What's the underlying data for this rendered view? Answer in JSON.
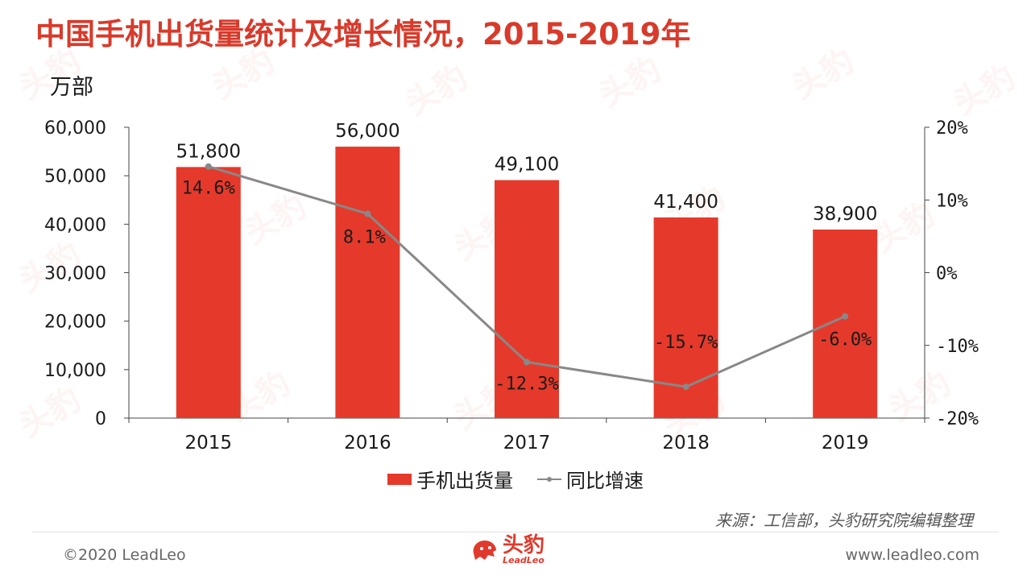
{
  "title": "中国手机出货量统计及增长情况，2015-2019年",
  "unit_label": "万部",
  "source": "来源：工信部，头豹研究院编辑整理",
  "footer": {
    "copyright": "©2020 LeadLeo",
    "website": "www.leadleo.com",
    "logo_cn": "头豹",
    "logo_en": "LeadLeo"
  },
  "watermark_text": "头豹",
  "colors": {
    "bar": "#e53a2b",
    "line": "#888888",
    "title": "#d83a2b"
  },
  "legend": {
    "bar_label": "手机出货量",
    "line_label": "同比增速"
  },
  "chart_data": {
    "type": "bar",
    "categories": [
      "2015",
      "2016",
      "2017",
      "2018",
      "2019"
    ],
    "series": [
      {
        "name": "手机出货量",
        "type": "bar",
        "axis": "left",
        "values": [
          51800,
          56000,
          49100,
          41400,
          38900
        ],
        "labels": [
          "51,800",
          "56,000",
          "49,100",
          "41,400",
          "38,900"
        ]
      },
      {
        "name": "同比增速",
        "type": "line",
        "axis": "right",
        "values": [
          14.6,
          8.1,
          -12.3,
          -15.7,
          -6.0
        ],
        "labels": [
          "14.6%",
          "8.1%",
          "-12.3%",
          "-15.7%",
          "-6.0%"
        ]
      }
    ],
    "ylim": [
      0,
      60000
    ],
    "yticks": [
      "0",
      "10,000",
      "20,000",
      "30,000",
      "40,000",
      "50,000",
      "60,000"
    ],
    "y2lim": [
      -20,
      20
    ],
    "y2ticks": [
      "-20%",
      "-10%",
      "0%",
      "10%",
      "20%"
    ],
    "legend_position": "bottom"
  }
}
